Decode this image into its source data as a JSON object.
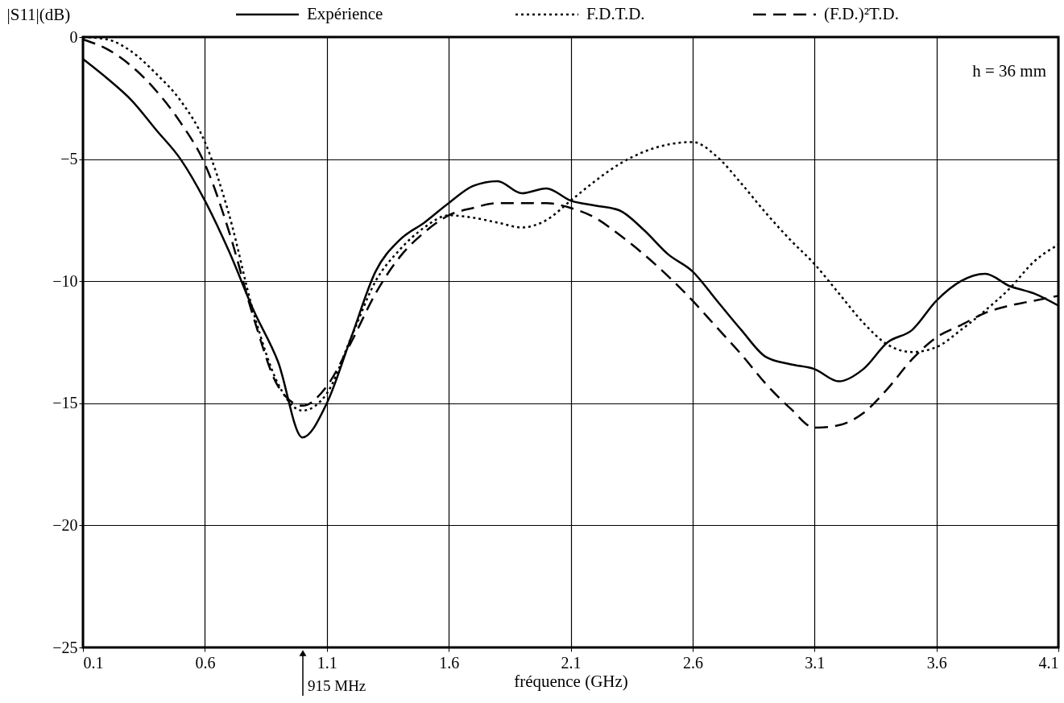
{
  "chart_data": {
    "type": "line",
    "xlabel": "fréquence  (GHz)",
    "ylabel": "|S11|(dB)",
    "x": [
      0.1,
      0.2,
      0.3,
      0.4,
      0.5,
      0.6,
      0.7,
      0.8,
      0.9,
      1.0,
      1.1,
      1.2,
      1.3,
      1.4,
      1.5,
      1.6,
      1.7,
      1.8,
      1.9,
      2.0,
      2.1,
      2.2,
      2.3,
      2.4,
      2.5,
      2.6,
      2.7,
      2.8,
      2.9,
      3.0,
      3.1,
      3.2,
      3.3,
      3.4,
      3.5,
      3.6,
      3.7,
      3.8,
      3.9,
      4.0,
      4.1
    ],
    "series": [
      {
        "name": "Expérience",
        "color": "#000000",
        "line_style": "solid",
        "values": [
          -0.9,
          -1.7,
          -2.6,
          -3.8,
          -5.0,
          -6.7,
          -8.8,
          -11.2,
          -13.3,
          -16.4,
          -15.0,
          -12.3,
          -9.6,
          -8.3,
          -7.6,
          -6.8,
          -6.1,
          -5.9,
          -6.4,
          -6.2,
          -6.7,
          -6.9,
          -7.1,
          -7.9,
          -8.9,
          -9.6,
          -10.8,
          -12.0,
          -13.1,
          -13.4,
          -13.6,
          -14.1,
          -13.6,
          -12.5,
          -12.0,
          -10.8,
          -10.0,
          -9.7,
          -10.2,
          -10.5,
          -11.0
        ]
      },
      {
        "name": "F.D.T.D.",
        "color": "#000000",
        "line_style": "dotted",
        "values": [
          0,
          -0.1,
          -0.6,
          -1.5,
          -2.6,
          -4.3,
          -7.3,
          -11.3,
          -14.2,
          -15.3,
          -14.6,
          -12.3,
          -10.0,
          -8.7,
          -7.8,
          -7.3,
          -7.4,
          -7.6,
          -7.8,
          -7.5,
          -6.7,
          -5.9,
          -5.2,
          -4.7,
          -4.4,
          -4.3,
          -4.9,
          -6.0,
          -7.2,
          -8.3,
          -9.3,
          -10.5,
          -11.7,
          -12.6,
          -12.9,
          -12.7,
          -12.0,
          -11.2,
          -10.3,
          -9.2,
          -8.5
        ]
      },
      {
        "name": "(F.D.)²T.D.",
        "color": "#000000",
        "line_style": "dashed",
        "values": [
          -0.1,
          -0.5,
          -1.2,
          -2.2,
          -3.5,
          -5.2,
          -8.0,
          -11.5,
          -14.3,
          -15.1,
          -14.3,
          -12.5,
          -10.5,
          -9.0,
          -8.0,
          -7.3,
          -7.0,
          -6.8,
          -6.8,
          -6.8,
          -7.0,
          -7.4,
          -8.1,
          -8.9,
          -9.8,
          -10.8,
          -11.9,
          -13.0,
          -14.2,
          -15.2,
          -16.0,
          -15.9,
          -15.4,
          -14.4,
          -13.2,
          -12.3,
          -11.8,
          -11.3,
          -11.0,
          -10.8,
          -10.6
        ]
      }
    ],
    "xlim": [
      0.1,
      4.1
    ],
    "xticks": [
      0.1,
      0.6,
      1.1,
      1.6,
      2.1,
      2.6,
      3.1,
      3.6,
      4.1
    ],
    "ylim": [
      -25,
      0
    ],
    "yticks": [
      -25,
      -20,
      -15,
      -10,
      -5,
      0
    ],
    "grid": true,
    "legend": "top",
    "marker": "none",
    "annotations": [
      "h = 36 mm",
      "915 MHz"
    ]
  }
}
